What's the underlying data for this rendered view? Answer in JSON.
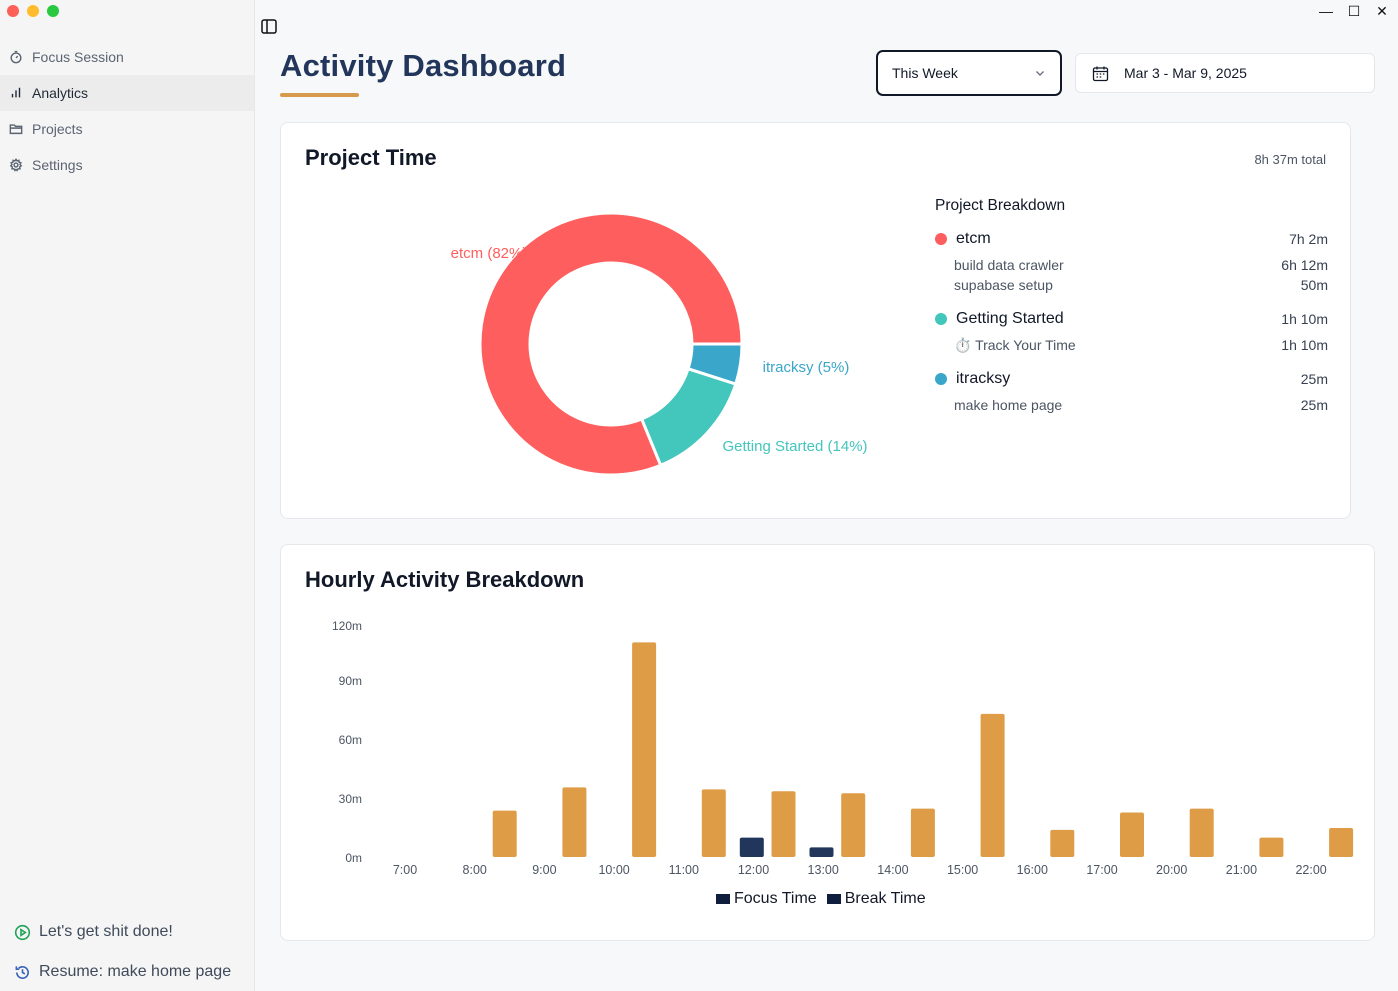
{
  "sidebar": {
    "items": [
      {
        "label": "Focus Session",
        "icon": "timer-icon"
      },
      {
        "label": "Analytics",
        "icon": "bar-chart-icon"
      },
      {
        "label": "Projects",
        "icon": "folder-icon"
      },
      {
        "label": "Settings",
        "icon": "gear-icon"
      }
    ],
    "footer_primary": "Let's get shit done!",
    "footer_resume": "Resume: make home page"
  },
  "header": {
    "title": "Activity Dashboard",
    "period_select": "This Week",
    "date_range": "Mar 3 - Mar 9, 2025"
  },
  "project_time": {
    "title": "Project Time",
    "total": "8h 37m total",
    "breakdown_title": "Project Breakdown",
    "projects": [
      {
        "name": "etcm",
        "time": "7h 2m",
        "color": "#fe5f5e",
        "tasks": [
          {
            "name": "build data crawler",
            "time": "6h 12m"
          },
          {
            "name": "supabase setup",
            "time": "50m"
          }
        ]
      },
      {
        "name": "Getting Started",
        "time": "1h 10m",
        "color": "#43c6bb",
        "tasks": [
          {
            "name": "Track Your Time",
            "time": "1h 10m",
            "icon": "⏱️"
          }
        ]
      },
      {
        "name": "itracksy",
        "time": "25m",
        "color": "#3aa6c9",
        "tasks": [
          {
            "name": "make home page",
            "time": "25m"
          }
        ]
      }
    ],
    "donut_labels": [
      "etcm (82%)",
      "itracksy (5%)",
      "Getting Started (14%)"
    ]
  },
  "chart_data": {
    "type": "bar",
    "title": "Hourly Activity Breakdown",
    "categories": [
      "7:00",
      "8:00",
      "9:00",
      "10:00",
      "11:00",
      "12:00",
      "13:00",
      "14:00",
      "15:00",
      "16:00",
      "17:00",
      "20:00",
      "21:00",
      "22:00"
    ],
    "series": [
      {
        "name": "Focus Time",
        "color": "#df9c47",
        "values": [
          0,
          24,
          36,
          111,
          35,
          34,
          33,
          25,
          74,
          14,
          23,
          25,
          10,
          15
        ]
      },
      {
        "name": "Break Time",
        "color": "#22365b",
        "values": [
          0,
          0,
          0,
          0,
          10,
          5,
          0,
          0,
          0,
          0,
          0,
          0,
          0,
          0
        ]
      }
    ],
    "ylim": [
      0,
      120
    ],
    "yticks": [
      "0m",
      "30m",
      "60m",
      "90m",
      "120m"
    ],
    "legend": [
      "Focus Time",
      "Break Time"
    ]
  },
  "donut": {
    "type": "pie",
    "slices": [
      {
        "label": "etcm",
        "percent": 82,
        "color": "#fe5f5e"
      },
      {
        "label": "itracksy",
        "percent": 5,
        "color": "#3aa6c9"
      },
      {
        "label": "Getting Started",
        "percent": 14,
        "color": "#43c6bb"
      }
    ]
  }
}
